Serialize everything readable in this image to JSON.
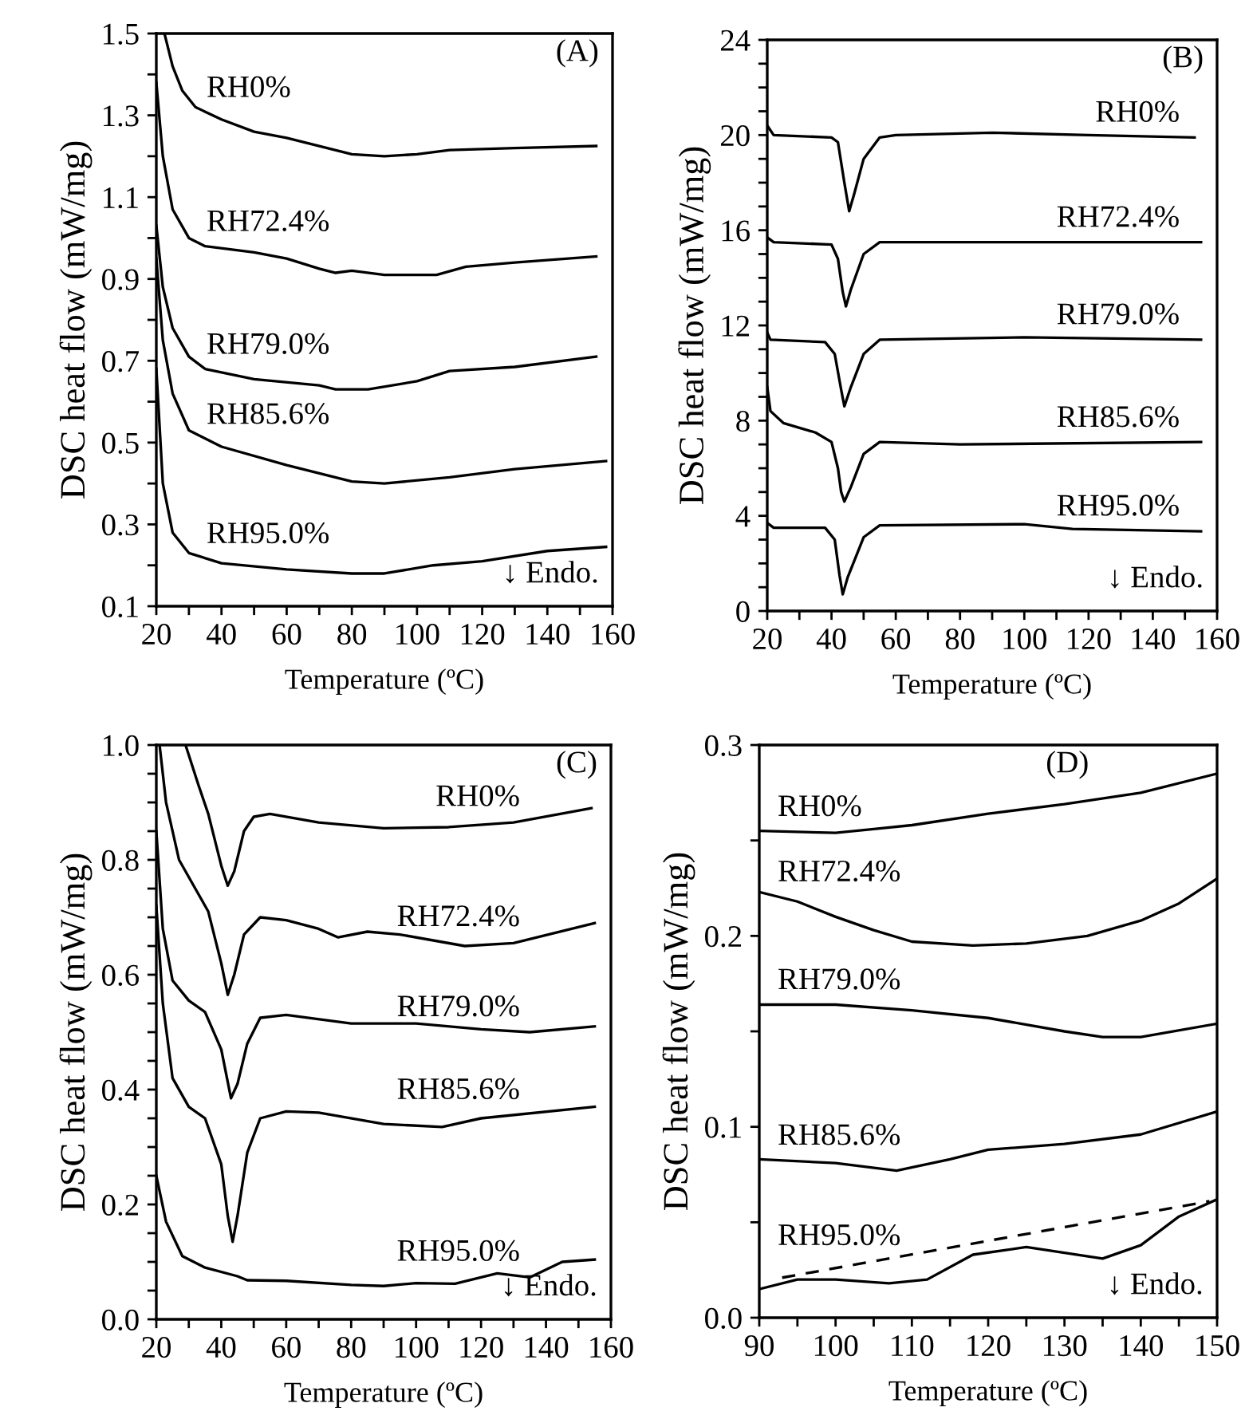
{
  "chart_data": [
    {
      "type": "line",
      "xlabel": "Temperature (ºC)",
      "ylabel": "DSC heat flow (mW/mg)",
      "annotations": [
        "(A)",
        "↓ Endo."
      ],
      "xlim": [
        20,
        160
      ],
      "ylim": [
        0.1,
        1.5
      ],
      "xticks": [
        20,
        {
          "value": 30,
          "label": null
        },
        40,
        {
          "value": 50,
          "label": null
        },
        60,
        {
          "value": 70,
          "label": null
        },
        80,
        {
          "value": 90,
          "label": null
        },
        100,
        {
          "value": 110,
          "label": null
        },
        120,
        {
          "value": 130,
          "label": null
        },
        140,
        {
          "value": 150,
          "label": null
        },
        160
      ],
      "yticks": [
        0.1,
        {
          "value": 0.2,
          "label": null
        },
        0.3,
        {
          "value": 0.4,
          "label": null
        },
        0.5,
        {
          "value": 0.6,
          "label": null
        },
        0.7,
        {
          "value": 0.8,
          "label": null
        },
        0.9,
        {
          "value": 1.0,
          "label": null
        },
        1.1,
        {
          "value": 1.2,
          "label": null
        },
        1.3,
        {
          "value": 1.4,
          "label": null
        },
        1.5
      ],
      "series": [
        {
          "name": "RH0%",
          "color": "#000000",
          "x": [
            22.5,
            25,
            28,
            32,
            40,
            50,
            60,
            70,
            80,
            90,
            100,
            110,
            130,
            155
          ],
          "values": [
            1.5,
            1.42,
            1.36,
            1.32,
            1.29,
            1.26,
            1.245,
            1.225,
            1.205,
            1.2,
            1.205,
            1.215,
            1.22,
            1.225
          ]
        },
        {
          "name": "RH72.4%",
          "color": "#000000",
          "x": [
            20,
            22,
            25,
            30,
            35,
            50,
            60,
            70,
            75,
            80,
            90,
            100,
            106,
            115,
            130,
            155
          ],
          "values": [
            1.38,
            1.2,
            1.07,
            1.0,
            0.98,
            0.965,
            0.95,
            0.925,
            0.915,
            0.92,
            0.91,
            0.91,
            0.91,
            0.93,
            0.94,
            0.955
          ]
        },
        {
          "name": "RH79.0%",
          "color": "#000000",
          "x": [
            20,
            22,
            25,
            30,
            35,
            50,
            70,
            75,
            85,
            100,
            110,
            130,
            155
          ],
          "values": [
            1.03,
            0.88,
            0.78,
            0.71,
            0.68,
            0.655,
            0.64,
            0.63,
            0.63,
            0.65,
            0.675,
            0.685,
            0.71
          ]
        },
        {
          "name": "RH85.6%",
          "color": "#000000",
          "x": [
            20,
            22,
            25,
            30,
            40,
            60,
            80,
            90,
            110,
            130,
            158
          ],
          "values": [
            0.95,
            0.75,
            0.62,
            0.53,
            0.49,
            0.445,
            0.405,
            0.4,
            0.415,
            0.435,
            0.455
          ]
        },
        {
          "name": "RH95.0%",
          "color": "#000000",
          "x": [
            20,
            22,
            25,
            30,
            40,
            60,
            80,
            90,
            105,
            120,
            140,
            158
          ],
          "values": [
            0.68,
            0.4,
            0.28,
            0.23,
            0.205,
            0.19,
            0.18,
            0.18,
            0.2,
            0.21,
            0.235,
            0.245
          ]
        }
      ]
    },
    {
      "type": "line",
      "xlabel": "Temperature (ºC)",
      "ylabel": "DSC heat flow (mW/mg)",
      "annotations": [
        "(B)",
        "↓ Endo."
      ],
      "xlim": [
        20,
        160
      ],
      "ylim": [
        0,
        24
      ],
      "xticks": [
        20,
        {
          "value": 30,
          "label": null
        },
        40,
        {
          "value": 50,
          "label": null
        },
        60,
        {
          "value": 70,
          "label": null
        },
        80,
        {
          "value": 90,
          "label": null
        },
        100,
        {
          "value": 110,
          "label": null
        },
        120,
        {
          "value": 130,
          "label": null
        },
        140,
        {
          "value": 150,
          "label": null
        },
        160
      ],
      "yticks": [
        0,
        {
          "value": 1,
          "label": null
        },
        {
          "value": 2,
          "label": null
        },
        {
          "value": 3,
          "label": null
        },
        4,
        {
          "value": 5,
          "label": null
        },
        {
          "value": 6,
          "label": null
        },
        {
          "value": 7,
          "label": null
        },
        8,
        {
          "value": 9,
          "label": null
        },
        {
          "value": 10,
          "label": null
        },
        {
          "value": 11,
          "label": null
        },
        12,
        {
          "value": 13,
          "label": null
        },
        {
          "value": 14,
          "label": null
        },
        {
          "value": 15,
          "label": null
        },
        16,
        {
          "value": 17,
          "label": null
        },
        {
          "value": 18,
          "label": null
        },
        {
          "value": 19,
          "label": null
        },
        20,
        {
          "value": 21,
          "label": null
        },
        {
          "value": 22,
          "label": null
        },
        {
          "value": 23,
          "label": null
        },
        24
      ],
      "series": [
        {
          "name": "RH0%",
          "color": "#000000",
          "x": [
            20,
            22,
            40,
            42,
            44,
            45.5,
            47,
            50,
            55,
            60,
            90,
            120,
            153
          ],
          "values": [
            20.4,
            20,
            19.9,
            19.7,
            18,
            16.8,
            17.5,
            19,
            19.9,
            20,
            20.1,
            20,
            19.9
          ]
        },
        {
          "name": "RH72.4%",
          "color": "#000000",
          "x": [
            20,
            22,
            40,
            42,
            43.5,
            44.5,
            46,
            50,
            55,
            100,
            155
          ],
          "values": [
            15.7,
            15.5,
            15.4,
            14.8,
            13.4,
            12.8,
            13.5,
            15,
            15.5,
            15.5,
            15.5
          ]
        },
        {
          "name": "RH79.0%",
          "color": "#000000",
          "x": [
            20,
            21,
            38,
            41,
            43,
            44,
            46,
            50,
            55,
            100,
            155
          ],
          "values": [
            11.7,
            11.4,
            11.3,
            10.8,
            9.3,
            8.6,
            9.4,
            10.8,
            11.4,
            11.5,
            11.4
          ]
        },
        {
          "name": "RH85.6%",
          "color": "#000000",
          "x": [
            20,
            21,
            25,
            35,
            40,
            42,
            43,
            44,
            46,
            50,
            55,
            80,
            155
          ],
          "values": [
            9.4,
            8.4,
            7.9,
            7.5,
            7.1,
            6,
            5,
            4.6,
            5.2,
            6.6,
            7.1,
            7.0,
            7.1
          ]
        },
        {
          "name": "RH95.0%",
          "color": "#000000",
          "x": [
            20,
            22,
            25,
            38,
            41,
            42.5,
            43.5,
            45,
            50,
            55,
            100,
            115,
            155
          ],
          "values": [
            3.7,
            3.5,
            3.5,
            3.5,
            3.0,
            1.5,
            0.7,
            1.4,
            3.1,
            3.6,
            3.65,
            3.45,
            3.35
          ]
        }
      ]
    },
    {
      "type": "line",
      "xlabel": "Temperature (ºC)",
      "ylabel": "DSC heat flow (mW/mg)",
      "annotations": [
        "(C)",
        "↓ Endo."
      ],
      "xlim": [
        20,
        160
      ],
      "ylim": [
        0,
        1.0
      ],
      "xticks": [
        20,
        {
          "value": 30,
          "label": null
        },
        40,
        {
          "value": 50,
          "label": null
        },
        60,
        {
          "value": 70,
          "label": null
        },
        80,
        {
          "value": 90,
          "label": null
        },
        100,
        {
          "value": 110,
          "label": null
        },
        120,
        {
          "value": 130,
          "label": null
        },
        140,
        {
          "value": 150,
          "label": null
        },
        160
      ],
      "yticks": [
        {
          "value": 0,
          "label": "0.0"
        },
        {
          "value": 0.05,
          "label": null
        },
        {
          "value": 0.1,
          "label": null
        },
        {
          "value": 0.15,
          "label": null
        },
        0.2,
        {
          "value": 0.25,
          "label": null
        },
        {
          "value": 0.3,
          "label": null
        },
        {
          "value": 0.35,
          "label": null
        },
        0.4,
        {
          "value": 0.45,
          "label": null
        },
        {
          "value": 0.5,
          "label": null
        },
        {
          "value": 0.55,
          "label": null
        },
        0.6,
        {
          "value": 0.65,
          "label": null
        },
        {
          "value": 0.7,
          "label": null
        },
        {
          "value": 0.75,
          "label": null
        },
        0.8,
        {
          "value": 0.85,
          "label": null
        },
        {
          "value": 0.9,
          "label": null
        },
        {
          "value": 0.95,
          "label": null
        },
        {
          "value": 1.0,
          "label": "1.0"
        }
      ],
      "series": [
        {
          "name": "RH0%",
          "color": "#000000",
          "x": [
            29,
            33,
            36,
            40,
            42,
            44,
            47,
            50,
            55,
            70,
            90,
            110,
            130,
            154
          ],
          "values": [
            1.0,
            0.93,
            0.88,
            0.79,
            0.755,
            0.78,
            0.85,
            0.875,
            0.88,
            0.865,
            0.855,
            0.857,
            0.865,
            0.89
          ]
        },
        {
          "name": "RH72.4%",
          "color": "#000000",
          "x": [
            21,
            23,
            27,
            32,
            36,
            40,
            42,
            44,
            47,
            52,
            60,
            70,
            76,
            85,
            95,
            115,
            130,
            155
          ],
          "values": [
            1.0,
            0.9,
            0.8,
            0.75,
            0.71,
            0.62,
            0.565,
            0.6,
            0.67,
            0.7,
            0.695,
            0.68,
            0.665,
            0.675,
            0.67,
            0.65,
            0.655,
            0.69
          ]
        },
        {
          "name": "RH79.0%",
          "color": "#000000",
          "x": [
            20,
            22,
            25,
            30,
            35,
            40,
            43,
            45,
            48,
            52,
            60,
            80,
            100,
            120,
            135,
            155
          ],
          "values": [
            0.85,
            0.68,
            0.59,
            0.555,
            0.535,
            0.47,
            0.385,
            0.41,
            0.48,
            0.525,
            0.53,
            0.515,
            0.515,
            0.505,
            0.5,
            0.51
          ]
        },
        {
          "name": "RH85.6%",
          "color": "#000000",
          "x": [
            20,
            22,
            25,
            30,
            35,
            40,
            42,
            43.5,
            45,
            48,
            52,
            60,
            70,
            90,
            108,
            120,
            155
          ],
          "values": [
            0.72,
            0.55,
            0.42,
            0.37,
            0.35,
            0.27,
            0.18,
            0.135,
            0.18,
            0.29,
            0.35,
            0.362,
            0.36,
            0.34,
            0.335,
            0.35,
            0.37
          ]
        },
        {
          "name": "RH95.0%",
          "color": "#000000",
          "x": [
            20,
            23,
            28,
            35,
            45,
            48,
            60,
            80,
            90,
            100,
            112,
            125,
            135,
            145,
            155
          ],
          "values": [
            0.25,
            0.17,
            0.11,
            0.09,
            0.075,
            0.068,
            0.067,
            0.06,
            0.058,
            0.063,
            0.062,
            0.08,
            0.073,
            0.1,
            0.104
          ]
        }
      ]
    },
    {
      "type": "line",
      "xlabel": "Temperature (ºC)",
      "ylabel": "DSC heat flow (mW/mg)",
      "annotations": [
        "(D)",
        "↓ Endo."
      ],
      "xlim": [
        90,
        150
      ],
      "ylim": [
        0,
        0.3
      ],
      "xticks": [
        90,
        {
          "value": 95,
          "label": null
        },
        100,
        {
          "value": 105,
          "label": null
        },
        110,
        {
          "value": 115,
          "label": null
        },
        120,
        {
          "value": 125,
          "label": null
        },
        130,
        {
          "value": 135,
          "label": null
        },
        140,
        {
          "value": 145,
          "label": null
        },
        150
      ],
      "yticks": [
        {
          "value": 0,
          "label": "0.0"
        },
        {
          "value": 0.05,
          "label": null
        },
        0.1,
        {
          "value": 0.15,
          "label": null
        },
        0.2,
        {
          "value": 0.25,
          "label": null
        },
        0.3
      ],
      "series": [
        {
          "name": "RH0%",
          "color": "#000000",
          "x": [
            90,
            100,
            105,
            110,
            120,
            130,
            140,
            150
          ],
          "values": [
            0.255,
            0.254,
            0.256,
            0.258,
            0.264,
            0.269,
            0.275,
            0.285
          ]
        },
        {
          "name": "RH72.4%",
          "color": "#000000",
          "x": [
            90,
            95,
            100,
            105,
            110,
            118,
            125,
            133,
            140,
            145,
            150
          ],
          "values": [
            0.223,
            0.218,
            0.21,
            0.203,
            0.197,
            0.195,
            0.196,
            0.2,
            0.208,
            0.217,
            0.23
          ]
        },
        {
          "name": "RH79.0%",
          "color": "#000000",
          "x": [
            90,
            100,
            110,
            120,
            130,
            135,
            140,
            150
          ],
          "values": [
            0.164,
            0.164,
            0.161,
            0.157,
            0.15,
            0.147,
            0.147,
            0.154
          ]
        },
        {
          "name": "RH85.6%",
          "color": "#000000",
          "x": [
            90,
            100,
            108,
            115,
            120,
            130,
            140,
            150
          ],
          "values": [
            0.083,
            0.081,
            0.077,
            0.083,
            0.088,
            0.091,
            0.096,
            0.108
          ]
        },
        {
          "name": "RH95.0%",
          "color": "#000000",
          "x": [
            90,
            95,
            100,
            107,
            112,
            118,
            125,
            130,
            135,
            140,
            145,
            150
          ],
          "values": [
            0.015,
            0.02,
            0.02,
            0.018,
            0.02,
            0.033,
            0.037,
            0.034,
            0.031,
            0.038,
            0.053,
            0.062
          ]
        },
        {
          "color": "#000000",
          "line_style": "dashed",
          "x": [
            93,
            149
          ],
          "values": [
            0.021,
            0.061
          ]
        }
      ]
    }
  ]
}
